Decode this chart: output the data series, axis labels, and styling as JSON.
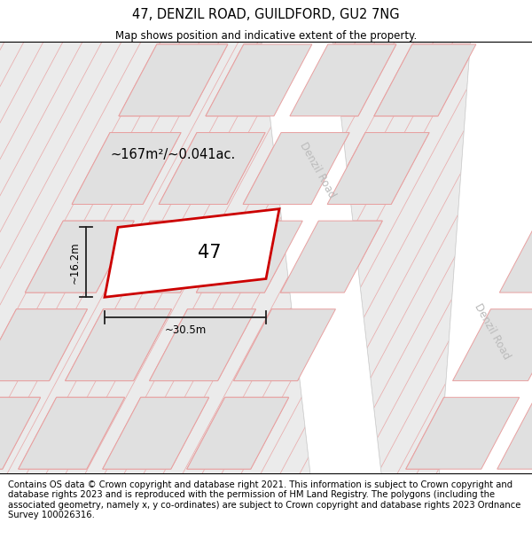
{
  "title": "47, DENZIL ROAD, GUILDFORD, GU2 7NG",
  "subtitle": "Map shows position and indicative extent of the property.",
  "footer": "Contains OS data © Crown copyright and database right 2021. This information is subject to Crown copyright and database rights 2023 and is reproduced with the permission of HM Land Registry. The polygons (including the associated geometry, namely x, y co-ordinates) are subject to Crown copyright and database rights 2023 Ordnance Survey 100026316.",
  "map_bg": "#ebebeb",
  "road_color": "#ffffff",
  "building_fill": "#e0e0e0",
  "building_stroke": "#e8a0a0",
  "property_fill": "#ffffff",
  "property_stroke": "#cc0000",
  "dim_color": "#333333",
  "road_label_color": "#bbbbbb",
  "hatch_color": "#e8a0a0",
  "area_text": "~167m²/~0.041ac.",
  "property_number": "47",
  "dim_width": "~30.5m",
  "dim_height": "~16.2m",
  "title_fontsize": 10.5,
  "subtitle_fontsize": 8.5,
  "footer_fontsize": 7.2
}
